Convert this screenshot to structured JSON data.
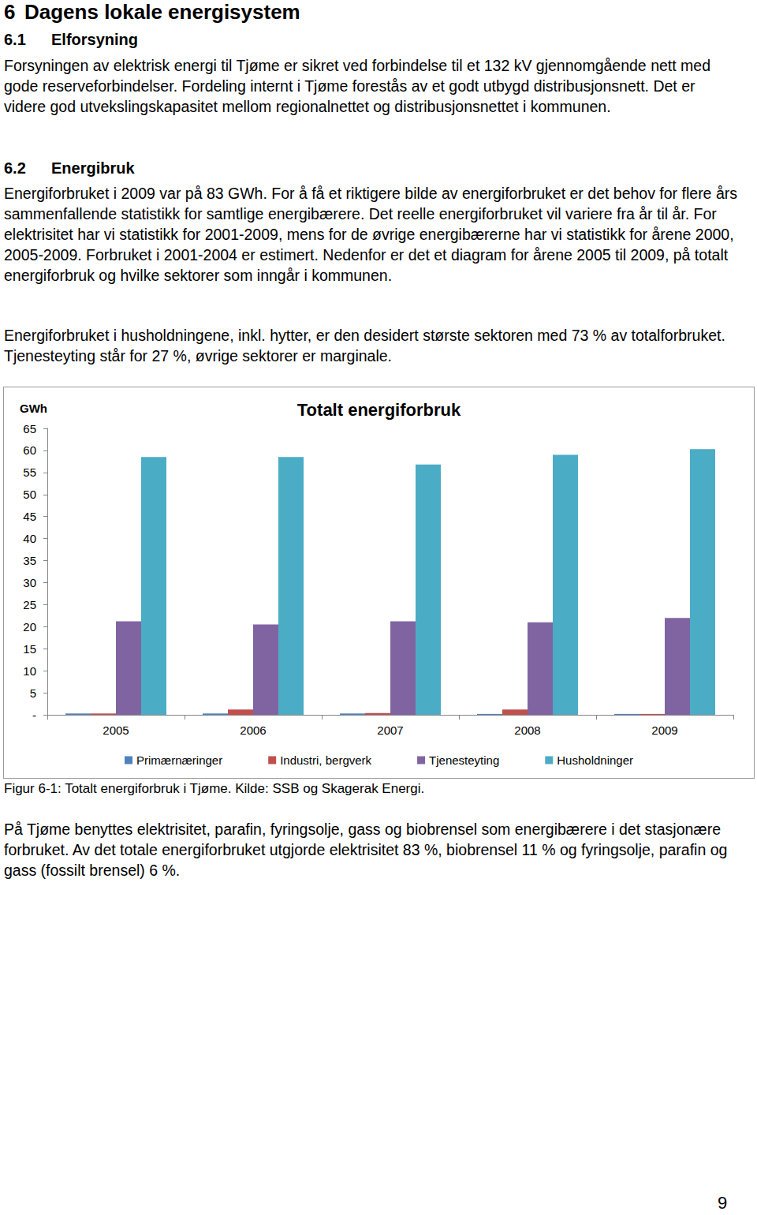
{
  "document": {
    "heading": {
      "number": "6",
      "title": "Dagens lokale energisystem"
    },
    "sections": [
      {
        "number": "6.1",
        "title": "Elforsyning",
        "paragraphs": [
          "Forsyningen av elektrisk energi til Tjøme er sikret ved forbindelse til et 132 kV gjennomgående nett med gode reserveforbindelser. Fordeling internt i Tjøme forestås av et godt utbygd distribusjonsnett. Det er videre god utvekslingskapasitet mellom regionalnettet og distribusjonsnettet i kommunen."
        ]
      },
      {
        "number": "6.2",
        "title": "Energibruk",
        "paragraphs": [
          "Energiforbruket i 2009 var på 83 GWh. For å få et riktigere bilde av energiforbruket er det behov for flere års sammenfallende statistikk for samtlige energibærere. Det reelle energiforbruket vil variere fra år til år. For elektrisitet har vi statistikk for 2001-2009, mens for de øvrige energibærerne har vi statistikk for årene 2000, 2005-2009. Forbruket i 2001-2004 er estimert. Nedenfor er det et diagram for årene 2005 til 2009, på totalt energiforbruk og hvilke sektorer som inngår i kommunen.",
          "Energiforbruket i husholdningene, inkl. hytter, er den desidert største sektoren med 73 % av totalforbruket. Tjenesteyting står for  27 %, øvrige sektorer er marginale."
        ]
      }
    ],
    "caption": "Figur 6-1: Totalt energiforbruk i Tjøme. Kilde: SSB og Skagerak Energi.",
    "closing_paragraph": "På Tjøme benyttes elektrisitet, parafin, fyringsolje, gass og biobrensel som energibærere i det stasjonære forbruket. Av det totale energiforbruket utgjorde elektrisitet 83 %, biobrensel 11 % og fyringsolje, parafin og gass (fossilt brensel) 6 %.",
    "page_number": "9"
  },
  "chart_data": {
    "type": "bar",
    "title": "Totalt energiforbruk",
    "y_label": "GWh",
    "categories": [
      "2005",
      "2006",
      "2007",
      "2008",
      "2009"
    ],
    "series": [
      {
        "name": "Primærnæringer",
        "color": "#4f81bd",
        "values": [
          0.3,
          0.3,
          0.3,
          0.2,
          0.2
        ]
      },
      {
        "name": "Industri, bergverk",
        "color": "#c0504d",
        "values": [
          0.3,
          1.2,
          0.4,
          1.2,
          0.2
        ]
      },
      {
        "name": "Tjenesteyting",
        "color": "#8064a2",
        "values": [
          21.2,
          20.5,
          21.2,
          21.0,
          22.0
        ]
      },
      {
        "name": "Husholdninger",
        "color": "#4bacc6",
        "values": [
          58.5,
          58.5,
          56.8,
          59.0,
          60.3
        ]
      }
    ],
    "ylim": [
      0,
      65
    ],
    "yticks": [
      {
        "value": 0,
        "label": "-"
      },
      5,
      10,
      15,
      20,
      25,
      30,
      35,
      40,
      45,
      50,
      55,
      60,
      65
    ],
    "grid": false,
    "legend": "bottom"
  }
}
